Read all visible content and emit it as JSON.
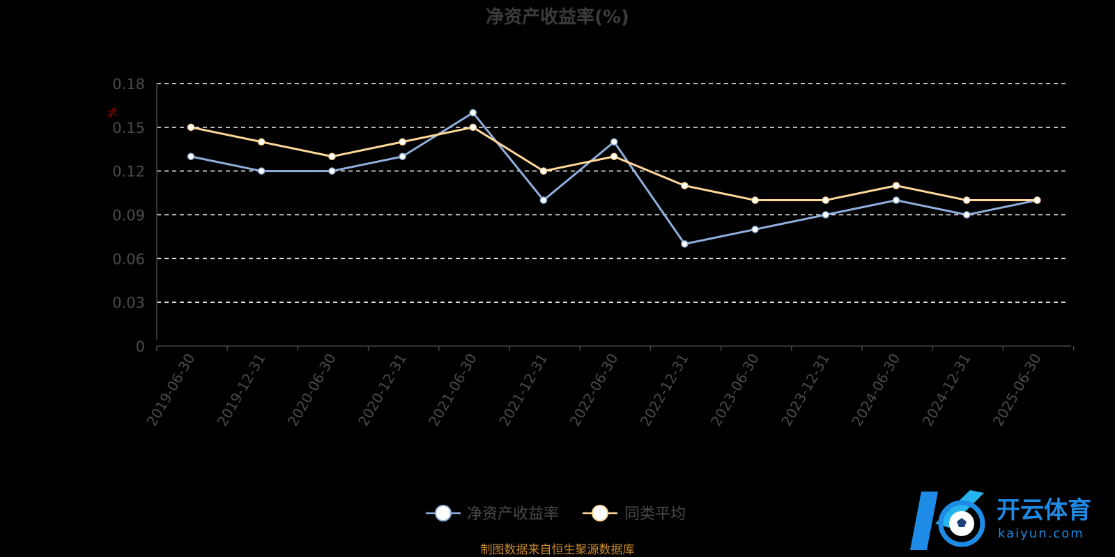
{
  "chart_data": {
    "type": "line",
    "title": "净资产收益率(%)",
    "unit": "%",
    "ylim": [
      0,
      0.18
    ],
    "yticks": [
      "0",
      "0.03",
      "0.06",
      "0.09",
      "0.12",
      "0.15",
      "0.18"
    ],
    "categories": [
      "2019-06-30",
      "2019-12-31",
      "2020-06-30",
      "2020-12-31",
      "2021-06-30",
      "2021-12-31",
      "2022-06-30",
      "2022-12-31",
      "2023-06-30",
      "2023-12-31",
      "2024-06-30",
      "2024-12-31",
      "2025-06-30"
    ],
    "series": [
      {
        "name": "净资产收益率",
        "color": "#8fb0dc",
        "values": [
          0.13,
          0.12,
          0.12,
          0.13,
          0.16,
          0.1,
          0.14,
          0.07,
          0.08,
          0.09,
          0.1,
          0.09,
          0.1
        ]
      },
      {
        "name": "同类平均",
        "color": "#ffd89a",
        "values": [
          0.15,
          0.14,
          0.13,
          0.14,
          0.15,
          0.12,
          0.13,
          0.11,
          0.1,
          0.1,
          0.11,
          0.1,
          0.1
        ]
      }
    ],
    "grid": true,
    "legend_position": "bottom-center"
  },
  "footer": {
    "source": "制图数据来自恒生聚源数据库"
  },
  "watermark": {
    "brand": "开云体育",
    "site": "kaiyun.com",
    "color": "#1e8be6"
  }
}
